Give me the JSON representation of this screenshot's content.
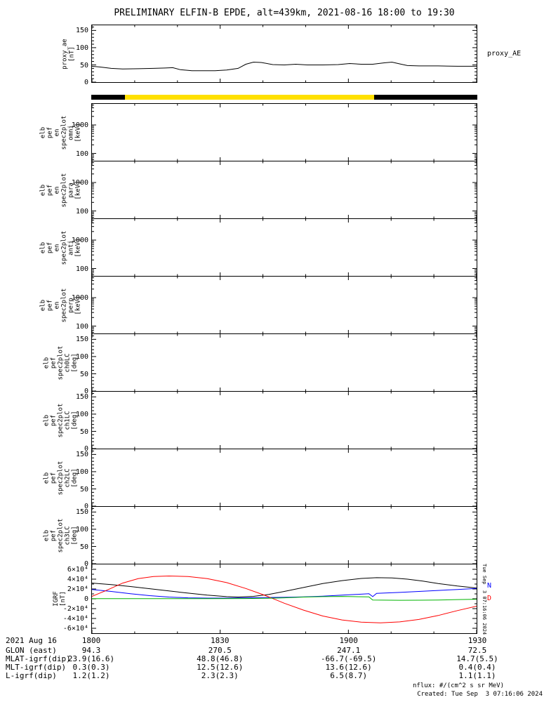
{
  "title": "PRELIMINARY ELFIN-B EPDE, alt=439km, 2021-08-16 18:00 to 19:30",
  "footer": {
    "nflux": "nflux: #/(cm^2 s sr MeV)",
    "created": "Created: Tue Sep  3 07:16:06 2024",
    "side_timestamp": "Tue Sep  3 07:16:06 2024"
  },
  "axis": {
    "date_label": "2021 Aug 16",
    "x_ticks": [
      "1800",
      "1830",
      "1900",
      "1930"
    ]
  },
  "table": {
    "rows": [
      {
        "label": "GLON (east)",
        "values": [
          "94.3",
          "270.5",
          "247.1",
          "72.5"
        ]
      },
      {
        "label": "MLAT-igrf(dip)",
        "values": [
          "23.9(16.6)",
          "48.8(46.8)",
          "-66.7(-69.5)",
          "14.7(5.5)"
        ]
      },
      {
        "label": "MLT-igrf(dip)",
        "values": [
          "0.3(0.3)",
          "12.5(12.6)",
          "13.6(12.6)",
          "0.4(0.4)"
        ]
      },
      {
        "label": "L-igrf(dip)",
        "values": [
          "1.2(1.2)",
          "2.3(2.3)",
          "6.5(8.7)",
          "1.1(1.1)"
        ]
      }
    ]
  },
  "chart_data": [
    {
      "id": "proxy_ae",
      "type": "line",
      "ylabel_lines": [
        "proxy_ae",
        "[nT]"
      ],
      "right_labels": [
        {
          "text": "proxy_AE",
          "color": "#000000",
          "y": 36
        }
      ],
      "xlim": [
        0,
        1
      ],
      "ylim": [
        0,
        165
      ],
      "yticks": [
        {
          "v": 0,
          "label": "0"
        },
        {
          "v": 50,
          "label": "50"
        },
        {
          "v": 100,
          "label": "100"
        },
        {
          "v": 150,
          "label": "150"
        }
      ],
      "yminor": [
        10,
        20,
        30,
        40,
        60,
        70,
        80,
        90,
        110,
        120,
        130,
        140,
        160
      ],
      "series": [
        {
          "name": "proxy_AE",
          "color": "#000000",
          "points": [
            [
              0,
              46
            ],
            [
              0.02,
              44
            ],
            [
              0.05,
              40
            ],
            [
              0.08,
              38
            ],
            [
              0.12,
              39
            ],
            [
              0.16,
              40
            ],
            [
              0.19,
              41
            ],
            [
              0.21,
              42
            ],
            [
              0.23,
              36
            ],
            [
              0.26,
              33
            ],
            [
              0.32,
              33
            ],
            [
              0.35,
              35
            ],
            [
              0.38,
              40
            ],
            [
              0.4,
              52
            ],
            [
              0.42,
              58
            ],
            [
              0.44,
              57
            ],
            [
              0.47,
              51
            ],
            [
              0.5,
              50
            ],
            [
              0.53,
              52
            ],
            [
              0.56,
              50
            ],
            [
              0.6,
              50
            ],
            [
              0.64,
              51
            ],
            [
              0.67,
              54
            ],
            [
              0.7,
              52
            ],
            [
              0.73,
              52
            ],
            [
              0.76,
              56
            ],
            [
              0.78,
              58
            ],
            [
              0.8,
              53
            ],
            [
              0.82,
              48
            ],
            [
              0.85,
              47
            ],
            [
              0.9,
              47
            ],
            [
              0.95,
              46
            ],
            [
              1,
              46
            ]
          ]
        }
      ]
    },
    {
      "id": "coverage",
      "type": "strip",
      "segments": [
        {
          "from": 0,
          "to": 0.087,
          "color": "#000000"
        },
        {
          "from": 0.087,
          "to": 0.733,
          "color": "#ffe000"
        },
        {
          "from": 0.733,
          "to": 1,
          "color": "#000000"
        }
      ]
    },
    {
      "id": "omni",
      "type": "spectrogram",
      "scale": "log",
      "ylabel_lines": [
        "elb",
        "pef",
        "en",
        "spec2plot",
        "omni",
        "[keV]"
      ],
      "ylim": [
        55,
        5500
      ],
      "yticks": [
        {
          "v": 1000,
          "label": "1000"
        },
        {
          "v": 100,
          "label": "100"
        }
      ],
      "yminor": [
        60,
        70,
        80,
        90,
        200,
        300,
        400,
        500,
        600,
        700,
        800,
        900,
        2000,
        3000,
        4000,
        5000
      ],
      "series": []
    },
    {
      "id": "para",
      "type": "spectrogram",
      "scale": "log",
      "ylabel_lines": [
        "elb",
        "pef",
        "en",
        "spec2plot",
        "para",
        "[keV]"
      ],
      "ylim": [
        55,
        5500
      ],
      "yticks": [
        {
          "v": 1000,
          "label": "1000"
        },
        {
          "v": 100,
          "label": "100"
        }
      ],
      "yminor": [
        60,
        70,
        80,
        90,
        200,
        300,
        400,
        500,
        600,
        700,
        800,
        900,
        2000,
        3000,
        4000,
        5000
      ],
      "series": []
    },
    {
      "id": "anti",
      "type": "spectrogram",
      "scale": "log",
      "ylabel_lines": [
        "elb",
        "pef",
        "en",
        "spec2plot",
        "anti",
        "[keV]"
      ],
      "ylim": [
        55,
        5500
      ],
      "yticks": [
        {
          "v": 1000,
          "label": "1000"
        },
        {
          "v": 100,
          "label": "100"
        }
      ],
      "yminor": [
        60,
        70,
        80,
        90,
        200,
        300,
        400,
        500,
        600,
        700,
        800,
        900,
        2000,
        3000,
        4000,
        5000
      ],
      "series": []
    },
    {
      "id": "perp",
      "type": "spectrogram",
      "scale": "log",
      "ylabel_lines": [
        "elb",
        "pef",
        "en",
        "spec2plot",
        "perp",
        "[keV]"
      ],
      "ylim": [
        55,
        5500
      ],
      "yticks": [
        {
          "v": 1000,
          "label": "1000"
        },
        {
          "v": 100,
          "label": "100"
        }
      ],
      "yminor": [
        60,
        70,
        80,
        90,
        200,
        300,
        400,
        500,
        600,
        700,
        800,
        900,
        2000,
        3000,
        4000,
        5000
      ],
      "series": []
    },
    {
      "id": "ch0LC",
      "type": "spectrogram",
      "scale": "linear",
      "ylabel_lines": [
        "elb",
        "pef",
        "spec2plot",
        "ch0LC",
        "[deg]"
      ],
      "ylim": [
        0,
        165
      ],
      "yticks": [
        {
          "v": 150,
          "label": "150"
        },
        {
          "v": 100,
          "label": "100"
        },
        {
          "v": 50,
          "label": "50"
        },
        {
          "v": 0,
          "label": "0"
        }
      ],
      "yminor": [
        10,
        20,
        30,
        40,
        60,
        70,
        80,
        90,
        110,
        120,
        130,
        140,
        160
      ],
      "series": []
    },
    {
      "id": "ch1LC",
      "type": "spectrogram",
      "scale": "linear",
      "ylabel_lines": [
        "elb",
        "pef",
        "spec2plot",
        "ch1LC",
        "[deg]"
      ],
      "ylim": [
        0,
        165
      ],
      "yticks": [
        {
          "v": 150,
          "label": "150"
        },
        {
          "v": 100,
          "label": "100"
        },
        {
          "v": 50,
          "label": "50"
        },
        {
          "v": 0,
          "label": "0"
        }
      ],
      "yminor": [
        10,
        20,
        30,
        40,
        60,
        70,
        80,
        90,
        110,
        120,
        130,
        140,
        160
      ],
      "series": []
    },
    {
      "id": "ch2LC",
      "type": "spectrogram",
      "scale": "linear",
      "ylabel_lines": [
        "elb",
        "pef",
        "spec2plot",
        "ch2LC",
        "[deg]"
      ],
      "ylim": [
        0,
        165
      ],
      "yticks": [
        {
          "v": 150,
          "label": "150"
        },
        {
          "v": 100,
          "label": "100"
        },
        {
          "v": 50,
          "label": "50"
        },
        {
          "v": 0,
          "label": "0"
        }
      ],
      "yminor": [
        10,
        20,
        30,
        40,
        60,
        70,
        80,
        90,
        110,
        120,
        130,
        140,
        160
      ],
      "series": []
    },
    {
      "id": "ch3LC",
      "type": "spectrogram",
      "scale": "linear",
      "ylabel_lines": [
        "elb",
        "pef",
        "spec2plot",
        "ch3LC",
        "[deg]"
      ],
      "ylim": [
        0,
        165
      ],
      "yticks": [
        {
          "v": 150,
          "label": "150"
        },
        {
          "v": 100,
          "label": "100"
        },
        {
          "v": 50,
          "label": "50"
        },
        {
          "v": 0,
          "label": "0"
        }
      ],
      "yminor": [
        10,
        20,
        30,
        40,
        60,
        70,
        80,
        90,
        110,
        120,
        130,
        140,
        160
      ],
      "series": []
    },
    {
      "id": "igrf",
      "type": "line",
      "ylabel_lines": [
        "IGRF",
        "[nT]"
      ],
      "right_labels": [
        {
          "text": "N",
          "color": "#0000ff",
          "y": 26
        },
        {
          "text": "D",
          "color": "#ff0000",
          "y": 44
        }
      ],
      "xlim": [
        0,
        1
      ],
      "ylim": [
        -70000,
        70000
      ],
      "yticks": [
        {
          "v": 60000,
          "label": "6×10⁴"
        },
        {
          "v": 40000,
          "label": "4×10⁴"
        },
        {
          "v": 20000,
          "label": "2×10⁴"
        },
        {
          "v": 0,
          "label": "0"
        },
        {
          "v": -20000,
          "label": "-2×10⁴"
        },
        {
          "v": -40000,
          "label": "-4×10⁴"
        },
        {
          "v": -60000,
          "label": "-6×10⁴"
        }
      ],
      "yminor": [
        -50000,
        -30000,
        -10000,
        10000,
        30000,
        50000
      ],
      "series": [
        {
          "name": "black",
          "color": "#000000",
          "points": [
            [
              0,
              32000
            ],
            [
              0.05,
              29000
            ],
            [
              0.1,
              25000
            ],
            [
              0.15,
              20500
            ],
            [
              0.2,
              16000
            ],
            [
              0.25,
              11500
            ],
            [
              0.3,
              7500
            ],
            [
              0.35,
              4500
            ],
            [
              0.38,
              3500
            ],
            [
              0.42,
              5000
            ],
            [
              0.46,
              9000
            ],
            [
              0.5,
              15000
            ],
            [
              0.55,
              23000
            ],
            [
              0.6,
              31000
            ],
            [
              0.65,
              37000
            ],
            [
              0.7,
              41500
            ],
            [
              0.74,
              43000
            ],
            [
              0.78,
              42500
            ],
            [
              0.82,
              40000
            ],
            [
              0.86,
              36000
            ],
            [
              0.9,
              31000
            ],
            [
              0.95,
              26000
            ],
            [
              1,
              22000
            ]
          ]
        },
        {
          "name": "N",
          "color": "#0000ff",
          "points": [
            [
              0,
              19000
            ],
            [
              0.05,
              15000
            ],
            [
              0.1,
              10500
            ],
            [
              0.15,
              6500
            ],
            [
              0.2,
              3500
            ],
            [
              0.25,
              2000
            ],
            [
              0.3,
              1500
            ],
            [
              0.35,
              1500
            ],
            [
              0.4,
              2000
            ],
            [
              0.45,
              2500
            ],
            [
              0.5,
              3000
            ],
            [
              0.55,
              4000
            ],
            [
              0.6,
              5500
            ],
            [
              0.65,
              7500
            ],
            [
              0.7,
              9500
            ],
            [
              0.72,
              10500
            ],
            [
              0.73,
              4500
            ],
            [
              0.74,
              11000
            ],
            [
              0.8,
              13000
            ],
            [
              0.85,
              15000
            ],
            [
              0.9,
              17000
            ],
            [
              0.95,
              19000
            ],
            [
              1,
              21000
            ]
          ]
        },
        {
          "name": "D",
          "color": "#ff0000",
          "points": [
            [
              0,
              5000
            ],
            [
              0.04,
              18000
            ],
            [
              0.08,
              32000
            ],
            [
              0.12,
              41000
            ],
            [
              0.16,
              45500
            ],
            [
              0.2,
              46500
            ],
            [
              0.25,
              45500
            ],
            [
              0.3,
              41000
            ],
            [
              0.35,
              33000
            ],
            [
              0.4,
              21000
            ],
            [
              0.45,
              7000
            ],
            [
              0.5,
              -9000
            ],
            [
              0.55,
              -23000
            ],
            [
              0.6,
              -35000
            ],
            [
              0.65,
              -43000
            ],
            [
              0.7,
              -47500
            ],
            [
              0.75,
              -49000
            ],
            [
              0.8,
              -47000
            ],
            [
              0.85,
              -42000
            ],
            [
              0.9,
              -34000
            ],
            [
              0.95,
              -24000
            ],
            [
              1,
              -15000
            ]
          ]
        },
        {
          "name": "green",
          "color": "#00b400",
          "points": [
            [
              0,
              300
            ],
            [
              0.1,
              300
            ],
            [
              0.2,
              300
            ],
            [
              0.3,
              300
            ],
            [
              0.4,
              500
            ],
            [
              0.45,
              1000
            ],
            [
              0.5,
              2000
            ],
            [
              0.55,
              3500
            ],
            [
              0.6,
              4500
            ],
            [
              0.65,
              4800
            ],
            [
              0.68,
              4500
            ],
            [
              0.72,
              4000
            ],
            [
              0.73,
              -2500
            ],
            [
              0.8,
              -3000
            ],
            [
              0.85,
              -2800
            ],
            [
              0.9,
              -2500
            ],
            [
              0.95,
              -1500
            ],
            [
              1,
              -800
            ]
          ]
        }
      ]
    }
  ]
}
